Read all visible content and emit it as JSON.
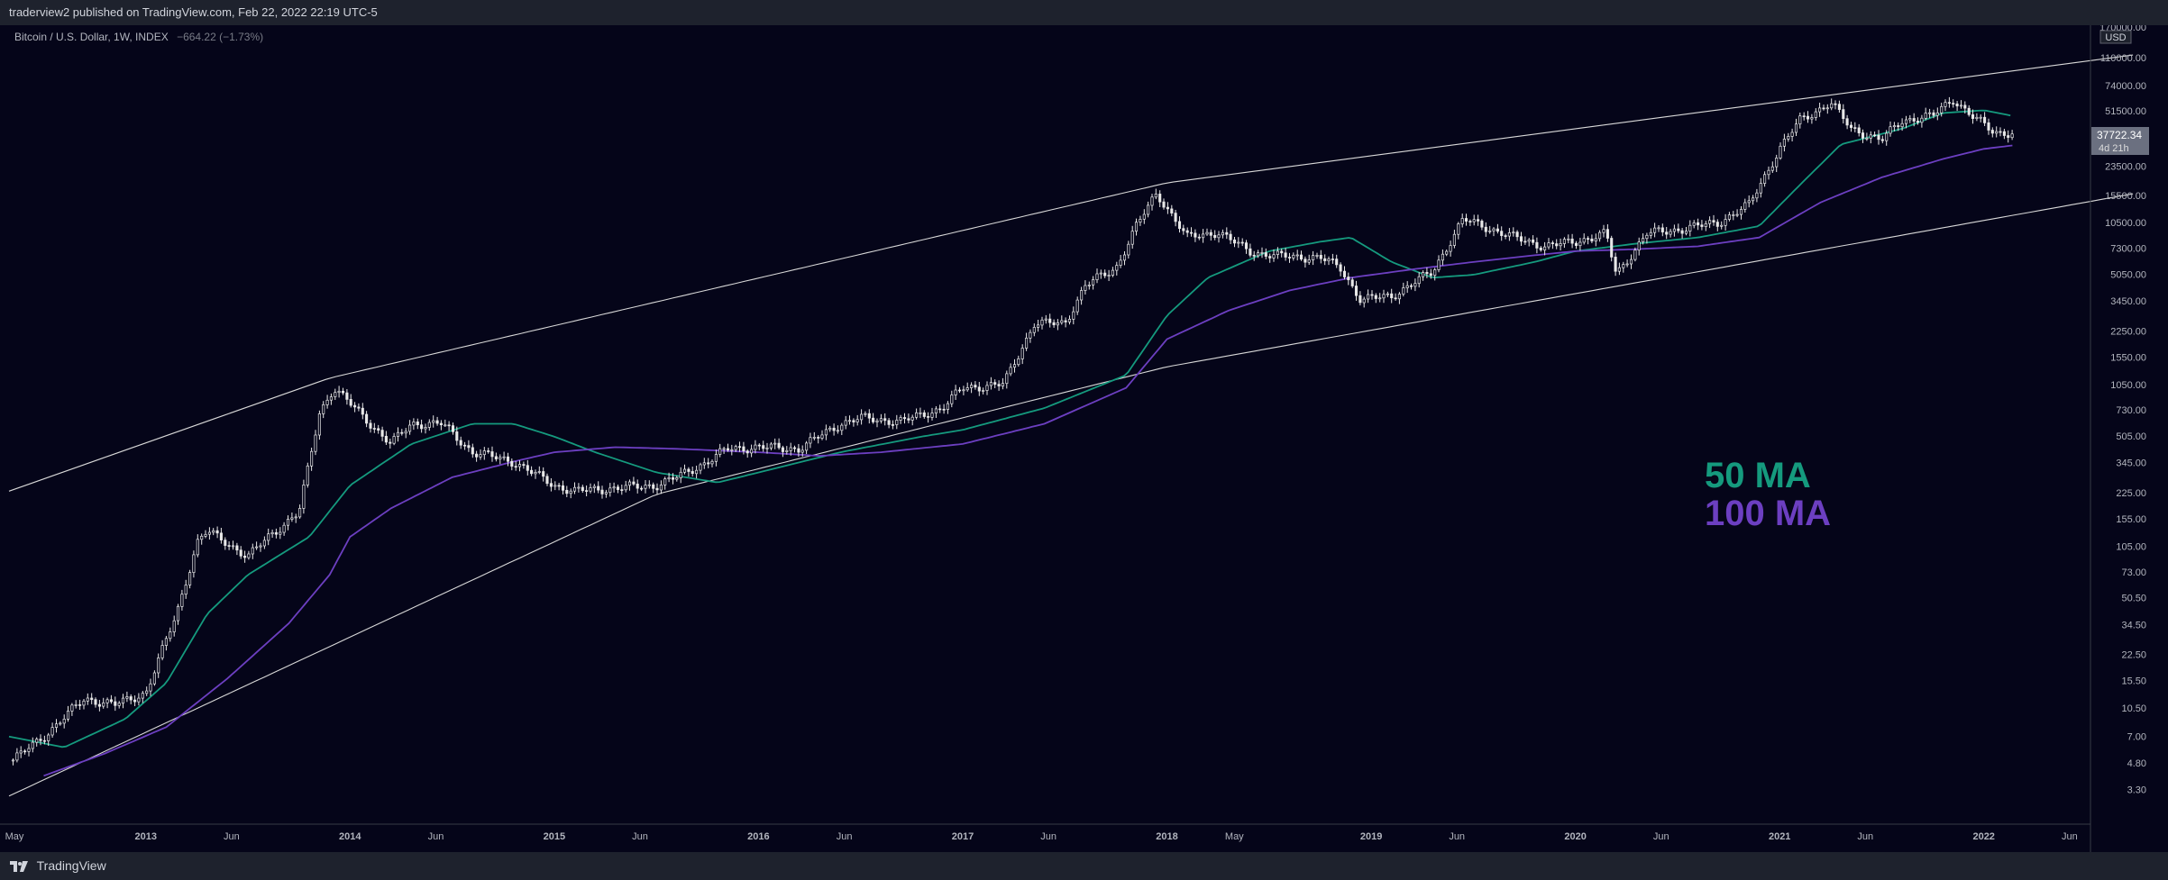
{
  "header": {
    "publisher": "traderview2 published on TradingView.com, Feb 22, 2022 22:19 UTC-5"
  },
  "legend": {
    "symbol": "Bitcoin / U.S. Dollar, 1W, INDEX",
    "change": "−664.22 (−1.73%)"
  },
  "annotations": {
    "ma50": "50 MA",
    "ma100": "100 MA"
  },
  "footer": {
    "brand": "TradingView"
  },
  "price_tag": {
    "value": "37722.34",
    "countdown": "4d 21h",
    "currency": "USD"
  },
  "colors": {
    "background": "#050519",
    "candle": "#e8e8e8",
    "ma50": "#159a7e",
    "ma100": "#6c3fc1",
    "channel": "#d8d8d8",
    "axis_text": "#b2b5be",
    "price_tag": "#6b7080"
  },
  "chart_data": {
    "type": "line",
    "scale": "log",
    "ylim": [
      2.5,
      170000
    ],
    "x_range": [
      2012.33,
      2022.5
    ],
    "y_ticks": [
      "170000.00",
      "110000.00",
      "74000.00",
      "51500.00",
      "37722.34",
      "23500.00",
      "15500.00",
      "10500.00",
      "7300.00",
      "5050.00",
      "3450.00",
      "2250.00",
      "1550.00",
      "1050.00",
      "730.00",
      "505.00",
      "345.00",
      "225.00",
      "155.00",
      "105.00",
      "73.00",
      "50.50",
      "34.50",
      "22.50",
      "15.50",
      "10.50",
      "7.00",
      "4.80",
      "3.30"
    ],
    "x_ticks": [
      {
        "label": "May",
        "t": 2012.33
      },
      {
        "label": "2013",
        "t": 2013.0
      },
      {
        "label": "Jun",
        "t": 2013.42
      },
      {
        "label": "2014",
        "t": 2014.0
      },
      {
        "label": "Jun",
        "t": 2014.42
      },
      {
        "label": "2015",
        "t": 2015.0
      },
      {
        "label": "Jun",
        "t": 2015.42
      },
      {
        "label": "2016",
        "t": 2016.0
      },
      {
        "label": "Jun",
        "t": 2016.42
      },
      {
        "label": "2017",
        "t": 2017.0
      },
      {
        "label": "Jun",
        "t": 2017.42
      },
      {
        "label": "2018",
        "t": 2018.0
      },
      {
        "label": "May",
        "t": 2018.33
      },
      {
        "label": "2019",
        "t": 2019.0
      },
      {
        "label": "Jun",
        "t": 2019.42
      },
      {
        "label": "2020",
        "t": 2020.0
      },
      {
        "label": "Jun",
        "t": 2020.42
      },
      {
        "label": "2021",
        "t": 2021.0
      },
      {
        "label": "Jun",
        "t": 2021.42
      },
      {
        "label": "2022",
        "t": 2022.0
      },
      {
        "label": "Jun",
        "t": 2022.42
      }
    ],
    "series": [
      {
        "role": "price",
        "x": [
          2012.35,
          2012.5,
          2012.7,
          2012.85,
          2013.0,
          2013.15,
          2013.25,
          2013.3,
          2013.4,
          2013.5,
          2013.6,
          2013.75,
          2013.85,
          2013.92,
          2014.0,
          2014.1,
          2014.2,
          2014.3,
          2014.45,
          2014.6,
          2014.8,
          2015.0,
          2015.1,
          2015.3,
          2015.5,
          2015.6,
          2015.75,
          2015.85,
          2016.0,
          2016.2,
          2016.4,
          2016.5,
          2016.7,
          2016.9,
          2017.0,
          2017.2,
          2017.35,
          2017.5,
          2017.6,
          2017.75,
          2017.85,
          2017.95,
          2018.0,
          2018.1,
          2018.25,
          2018.4,
          2018.55,
          2018.75,
          2018.85,
          2018.95,
          2019.1,
          2019.3,
          2019.45,
          2019.55,
          2019.7,
          2019.85,
          2020.0,
          2020.15,
          2020.2,
          2020.35,
          2020.5,
          2020.7,
          2020.85,
          2021.0,
          2021.1,
          2021.25,
          2021.35,
          2021.5,
          2021.6,
          2021.75,
          2021.85,
          2021.95,
          2022.05,
          2022.14
        ],
        "y": [
          5,
          7,
          12,
          11,
          13,
          40,
          110,
          130,
          110,
          90,
          120,
          170,
          700,
          1000,
          800,
          600,
          450,
          600,
          600,
          400,
          350,
          250,
          230,
          240,
          250,
          280,
          350,
          420,
          430,
          420,
          600,
          650,
          620,
          750,
          1000,
          1050,
          2500,
          2500,
          4300,
          5500,
          10000,
          16000,
          13000,
          8500,
          9200,
          7000,
          6500,
          6400,
          5500,
          3500,
          3700,
          5200,
          11000,
          10000,
          8500,
          7500,
          8000,
          9000,
          5000,
          9000,
          9500,
          10500,
          13500,
          30000,
          45000,
          58000,
          40000,
          34000,
          45000,
          48000,
          61000,
          47000,
          38000,
          37722
        ]
      },
      {
        "name": "50 MA",
        "x": [
          2012.33,
          2012.6,
          2012.9,
          2013.1,
          2013.3,
          2013.5,
          2013.8,
          2014.0,
          2014.3,
          2014.6,
          2014.8,
          2015.0,
          2015.2,
          2015.5,
          2015.8,
          2016.0,
          2016.4,
          2016.8,
          2017.0,
          2017.4,
          2017.8,
          2018.0,
          2018.2,
          2018.5,
          2018.75,
          2018.9,
          2019.1,
          2019.3,
          2019.5,
          2019.8,
          2020.0,
          2020.3,
          2020.6,
          2020.9,
          2021.1,
          2021.3,
          2021.6,
          2021.8,
          2022.0,
          2022.14
        ],
        "y": [
          7,
          6,
          9,
          15,
          40,
          70,
          120,
          250,
          450,
          600,
          600,
          500,
          400,
          300,
          260,
          300,
          400,
          500,
          550,
          750,
          1200,
          2800,
          4800,
          7000,
          8000,
          8500,
          6000,
          4800,
          5000,
          6000,
          7000,
          7800,
          8500,
          10000,
          18000,
          32000,
          40000,
          50000,
          52000,
          48000
        ]
      },
      {
        "name": "100 MA",
        "x": [
          2012.5,
          2012.8,
          2013.1,
          2013.4,
          2013.7,
          2013.9,
          2014.0,
          2014.2,
          2014.5,
          2014.8,
          2015.0,
          2015.3,
          2015.6,
          2016.0,
          2016.3,
          2016.6,
          2017.0,
          2017.4,
          2017.8,
          2018.0,
          2018.3,
          2018.6,
          2018.9,
          2019.2,
          2019.5,
          2019.8,
          2020.0,
          2020.3,
          2020.6,
          2020.9,
          2021.2,
          2021.5,
          2021.8,
          2022.0,
          2022.14
        ],
        "y": [
          4,
          5.5,
          8,
          16,
          35,
          70,
          120,
          180,
          280,
          350,
          400,
          430,
          420,
          400,
          380,
          400,
          450,
          600,
          1000,
          2000,
          3000,
          4000,
          4800,
          5400,
          6000,
          6600,
          7000,
          7200,
          7500,
          8500,
          14000,
          20000,
          26000,
          30000,
          31500
        ]
      },
      {
        "role": "channel-upper",
        "x": [
          2012.33,
          2013.9,
          2018.0,
          2022.75
        ],
        "y": [
          230,
          1150,
          18500,
          115000
        ]
      },
      {
        "role": "channel-lower",
        "x": [
          2012.33,
          2015.5,
          2018.0,
          2022.75
        ],
        "y": [
          3.0,
          220,
          1350,
          16000
        ]
      }
    ]
  }
}
